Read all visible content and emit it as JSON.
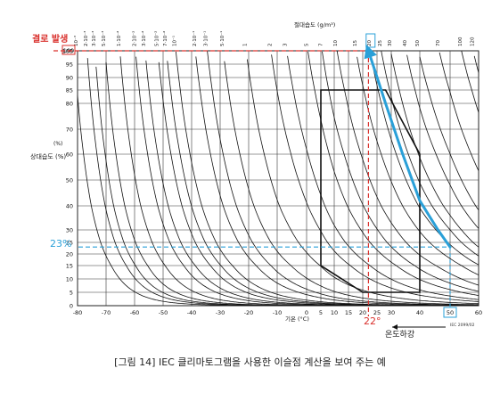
{
  "chart_data": {
    "type": "line",
    "title": "절대습도 (g/m³)",
    "xlabel": "기온 (°C)",
    "ylabel": "상대습도 (%)",
    "ylabel_unit": "(%)",
    "xlim": [
      -80,
      60
    ],
    "ylim": [
      0,
      100
    ],
    "x_ticks": [
      "-80",
      "-70",
      "-60",
      "-50",
      "-40",
      "-30",
      "-20",
      "-10",
      "0",
      "5",
      "10",
      "15",
      "20",
      "25",
      "30",
      "40",
      "50",
      "60"
    ],
    "y_ticks": [
      "0",
      "5",
      "10",
      "15",
      "20",
      "25",
      "30",
      "40",
      "50",
      "60",
      "70",
      "80",
      "85",
      "90",
      "95",
      "100"
    ],
    "absolute_humidity_labels": [
      "10⁻³",
      "2·10⁻³",
      "3·10⁻³",
      "5·10⁻³",
      "1·10⁻²",
      "2·10⁻²",
      "3·10⁻²",
      "5·10⁻²",
      "7·10⁻²",
      "10⁻¹",
      "2·10⁻¹",
      "3·10⁻¹",
      "5·10⁻¹",
      "1",
      "2",
      "3",
      "5",
      "7",
      "10",
      "15",
      "20",
      "25",
      "30",
      "40",
      "50",
      "70",
      "100",
      "120"
    ],
    "absolute_humidity_values": [
      0.001,
      0.002,
      0.003,
      0.005,
      0.01,
      0.02,
      0.03,
      0.05,
      0.07,
      0.1,
      0.2,
      0.3,
      0.5,
      1,
      2,
      3,
      5,
      7,
      10,
      15,
      20,
      25,
      30,
      40,
      50,
      70,
      100,
      120
    ],
    "climate_envelope": [
      {
        "x": 5,
        "y": 85
      },
      {
        "x": 28,
        "y": 85
      },
      {
        "x": 40,
        "y": 60
      },
      {
        "x": 40,
        "y": 5
      },
      {
        "x": 20,
        "y": 5
      },
      {
        "x": 5,
        "y": 15
      }
    ],
    "cooling_path": [
      {
        "x": 50,
        "y": 23
      },
      {
        "x": 46,
        "y": 30
      },
      {
        "x": 40,
        "y": 42
      },
      {
        "x": 34,
        "y": 60
      },
      {
        "x": 28,
        "y": 80
      },
      {
        "x": 22,
        "y": 100
      }
    ],
    "annotations": {
      "condensation": "결로 발생",
      "condensation_value": "100",
      "rh_marker": "23%",
      "rh_value": 23,
      "start_temp": "50",
      "start_temp_value": 50,
      "dew_point": "22°",
      "dew_point_value": 22,
      "abs_highlight": "20",
      "cooling": "온도하강",
      "source": "IEC 2099/02"
    },
    "colors": {
      "accent_red": "#d9302c",
      "accent_blue": "#2aa0d8",
      "lines": "#111111"
    }
  },
  "caption": "[그림 14] IEC 클리마토그램을 사용한 이슬점 계산을 보여 주는 예"
}
